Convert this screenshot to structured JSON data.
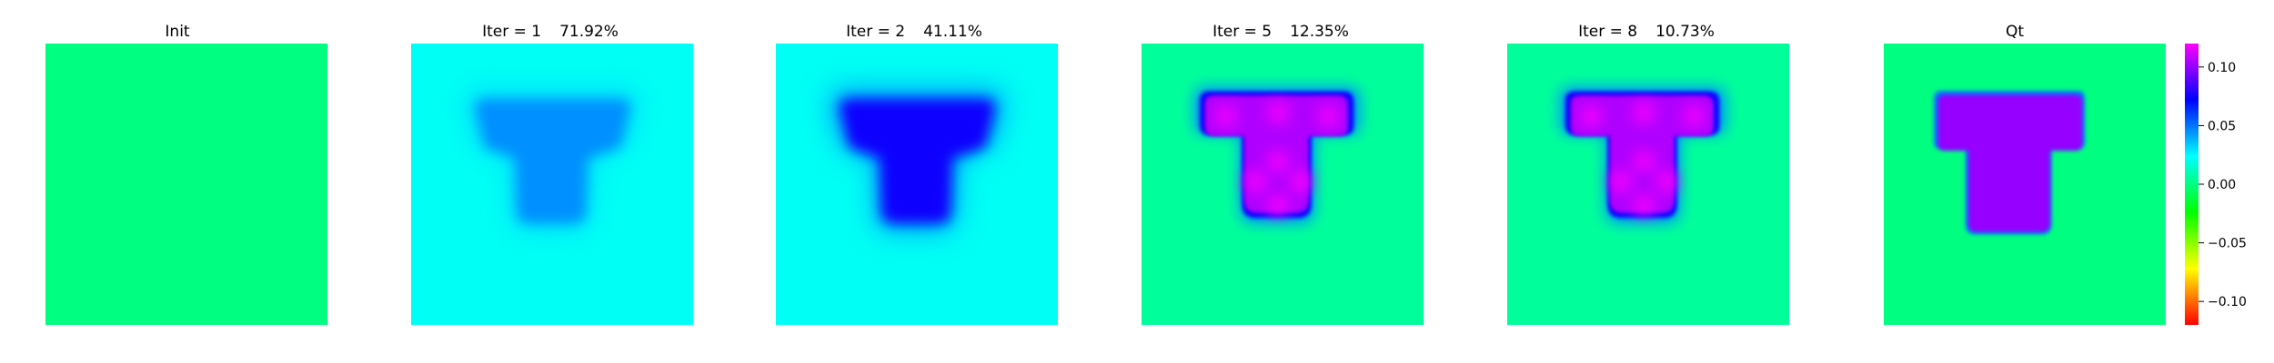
{
  "chart_data": {
    "type": "heatmap",
    "colorbar": {
      "colormap": "gist_rainbow",
      "vmin": -0.12,
      "vmax": 0.12,
      "ticks": [
        0.1,
        0.05,
        0.0,
        -0.05,
        -0.1
      ],
      "tick_labels": [
        "0.10",
        "0.05",
        "0.00",
        "−0.05",
        "−0.10"
      ]
    },
    "panels": [
      {
        "title": "Init",
        "iter": "",
        "error": "",
        "background": 0.0,
        "shape": "none",
        "peak": 0.0
      },
      {
        "title": "",
        "iter": "Iter = 1",
        "error": "71.92%",
        "background": 0.022,
        "shape": "cup",
        "peak": 0.045
      },
      {
        "title": "",
        "iter": "Iter = 2",
        "error": "41.11%",
        "background": 0.022,
        "shape": "cup",
        "peak": 0.075
      },
      {
        "title": "",
        "iter": "Iter = 5",
        "error": "12.35%",
        "background": 0.005,
        "shape": "tee",
        "peak": 0.105
      },
      {
        "title": "",
        "iter": "Iter = 8",
        "error": "10.73%",
        "background": 0.005,
        "shape": "tee",
        "peak": 0.105
      },
      {
        "title": "Qt",
        "iter": "",
        "error": "",
        "background": 0.0,
        "shape": "tee_ideal",
        "peak": 0.1
      }
    ]
  }
}
